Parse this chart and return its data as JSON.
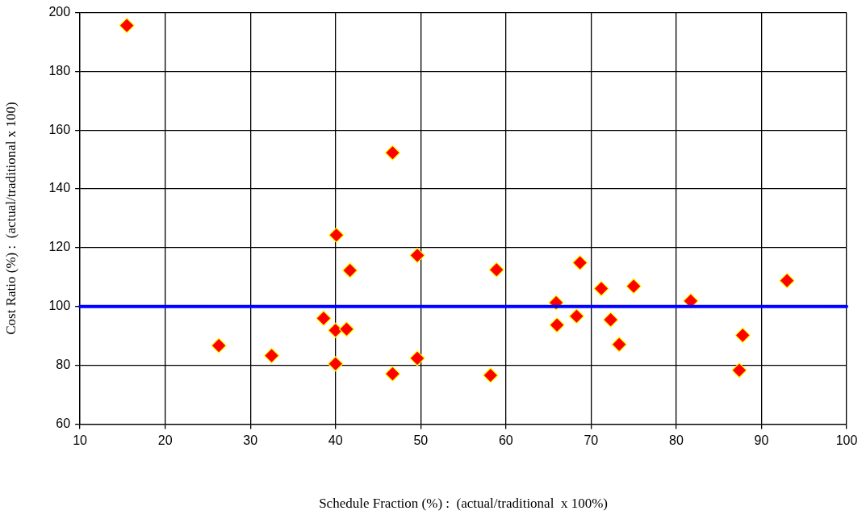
{
  "chart_data": {
    "type": "scatter",
    "xlabel": "Schedule Fraction (%) :  (actual/traditional  x 100%)",
    "ylabel": "Cost Ratio (%) :  (actual/traditional x 100)",
    "xlim": [
      10,
      100
    ],
    "xticks": [
      10,
      20,
      30,
      40,
      50,
      60,
      70,
      80,
      90,
      100
    ],
    "ylim": [
      60,
      200
    ],
    "yticks": [
      60,
      80,
      100,
      120,
      140,
      160,
      180,
      200
    ],
    "grid": true,
    "marker": "diamond",
    "legend": false,
    "series": [
      {
        "color": "#ff0000",
        "x": [
          15.5,
          46.7,
          40.1,
          49.6,
          41.7,
          38.6,
          40.0,
          41.3,
          26.3,
          32.5,
          40.0,
          49.6,
          46.7,
          58.9,
          58.2,
          65.9,
          66.0,
          68.7,
          68.3,
          71.2,
          72.3,
          73.3,
          75.0,
          81.7,
          87.8,
          87.4,
          93.0
        ],
        "values": [
          195.6,
          152.3,
          124.3,
          117.4,
          112.3,
          96.0,
          91.9,
          92.3,
          86.7,
          83.3,
          80.5,
          82.4,
          77.1,
          112.5,
          76.6,
          101.3,
          93.7,
          114.9,
          96.7,
          106.1,
          95.5,
          87.1,
          106.9,
          101.9,
          90.2,
          78.3,
          108.8
        ]
      }
    ],
    "ref_lines": [
      {
        "axis": "y",
        "value": 100,
        "color": "#0000ff",
        "line_style": "solid"
      }
    ]
  }
}
